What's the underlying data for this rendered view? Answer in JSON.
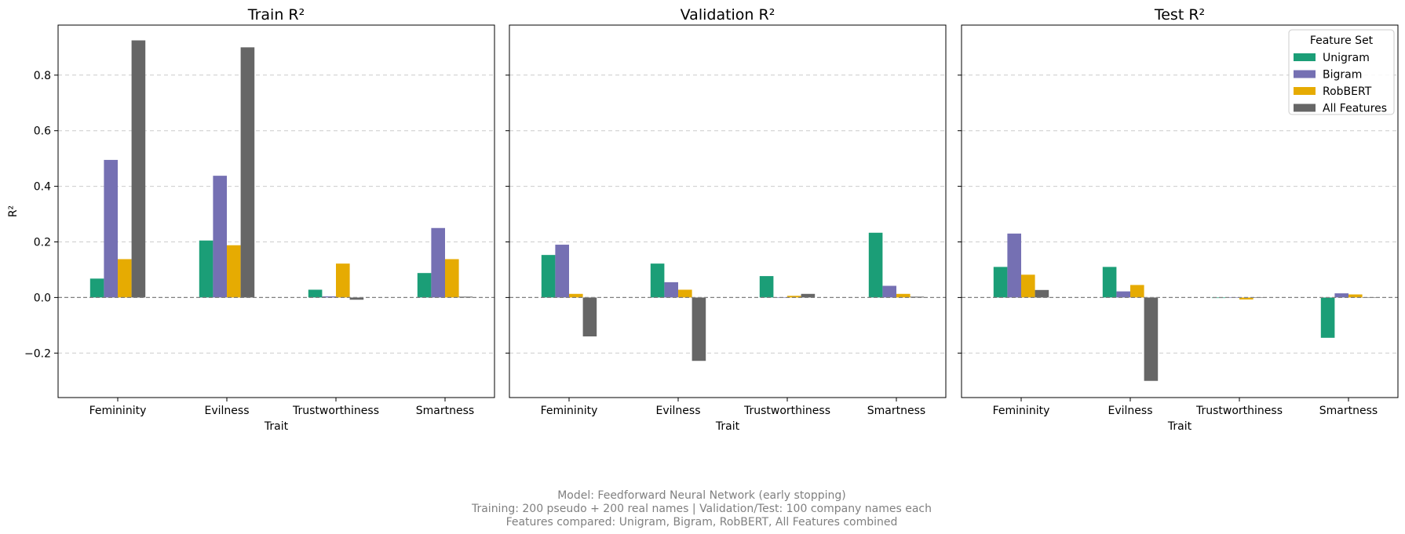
{
  "chart_data": [
    {
      "type": "bar",
      "title": "Train R²",
      "xlabel": "Trait",
      "ylabel": "R²",
      "categories": [
        "Femininity",
        "Evilness",
        "Trustworthiness",
        "Smartness"
      ],
      "ylim": [
        -0.36,
        0.98
      ],
      "yticks": [
        -0.2,
        0.0,
        0.2,
        0.4,
        0.6,
        0.8
      ],
      "grid": true,
      "series": [
        {
          "name": "Unigram",
          "values": [
            0.068,
            0.205,
            0.028,
            0.088
          ]
        },
        {
          "name": "Bigram",
          "values": [
            0.495,
            0.438,
            0.004,
            0.25
          ]
        },
        {
          "name": "RobBERT",
          "values": [
            0.138,
            0.188,
            0.122,
            0.138
          ]
        },
        {
          "name": "All Features",
          "values": [
            0.925,
            0.9,
            -0.008,
            0.003
          ]
        }
      ]
    },
    {
      "type": "bar",
      "title": "Validation R²",
      "xlabel": "Trait",
      "ylabel": "",
      "categories": [
        "Femininity",
        "Evilness",
        "Trustworthiness",
        "Smartness"
      ],
      "ylim": [
        -0.36,
        0.98
      ],
      "yticks": [
        -0.2,
        0.0,
        0.2,
        0.4,
        0.6,
        0.8
      ],
      "grid": true,
      "series": [
        {
          "name": "Unigram",
          "values": [
            0.153,
            0.122,
            0.077,
            0.233
          ]
        },
        {
          "name": "Bigram",
          "values": [
            0.19,
            0.055,
            0.001,
            0.042
          ]
        },
        {
          "name": "RobBERT",
          "values": [
            0.013,
            0.028,
            0.006,
            0.013
          ]
        },
        {
          "name": "All Features",
          "values": [
            -0.14,
            -0.228,
            0.013,
            0.003
          ]
        }
      ]
    },
    {
      "type": "bar",
      "title": "Test R²",
      "xlabel": "Trait",
      "ylabel": "",
      "categories": [
        "Femininity",
        "Evilness",
        "Trustworthiness",
        "Smartness"
      ],
      "ylim": [
        -0.36,
        0.98
      ],
      "yticks": [
        -0.2,
        0.0,
        0.2,
        0.4,
        0.6,
        0.8
      ],
      "grid": true,
      "legend": {
        "title": "Feature Set",
        "placement": "top-right",
        "entries": [
          "Unigram",
          "Bigram",
          "RobBERT",
          "All Features"
        ]
      },
      "series": [
        {
          "name": "Unigram",
          "values": [
            0.11,
            0.11,
            -0.002,
            -0.145
          ]
        },
        {
          "name": "Bigram",
          "values": [
            0.23,
            0.022,
            0.001,
            0.015
          ]
        },
        {
          "name": "RobBERT",
          "values": [
            0.082,
            0.045,
            -0.007,
            0.011
          ]
        },
        {
          "name": "All Features",
          "values": [
            0.027,
            -0.3,
            0.001,
            0.001
          ]
        }
      ]
    }
  ],
  "colors": {
    "Unigram": "#1b9e77",
    "Bigram": "#7570b3",
    "RobBERT": "#e6ab02",
    "All Features": "#666666"
  },
  "caption": {
    "line1": "Model: Feedforward Neural Network (early stopping)",
    "line2": "Training: 200 pseudo + 200 real names | Validation/Test: 100 company names each",
    "line3": "Features compared: Unigram, Bigram, RobBERT, All Features combined"
  }
}
